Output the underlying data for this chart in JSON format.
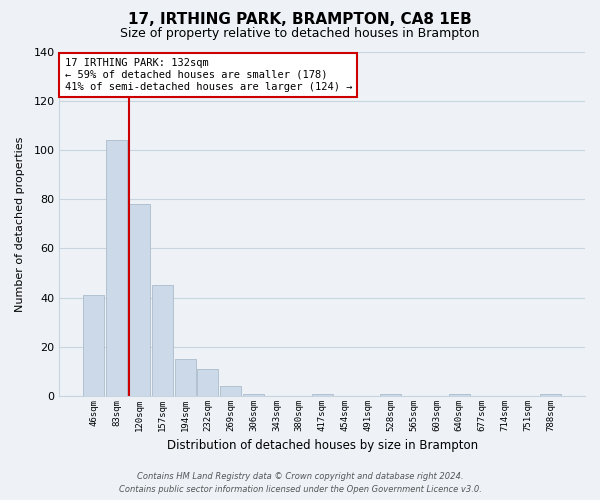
{
  "title": "17, IRTHING PARK, BRAMPTON, CA8 1EB",
  "subtitle": "Size of property relative to detached houses in Brampton",
  "xlabel": "Distribution of detached houses by size in Brampton",
  "ylabel": "Number of detached properties",
  "bar_labels": [
    "46sqm",
    "83sqm",
    "120sqm",
    "157sqm",
    "194sqm",
    "232sqm",
    "269sqm",
    "306sqm",
    "343sqm",
    "380sqm",
    "417sqm",
    "454sqm",
    "491sqm",
    "528sqm",
    "565sqm",
    "603sqm",
    "640sqm",
    "677sqm",
    "714sqm",
    "751sqm",
    "788sqm"
  ],
  "bar_values": [
    41,
    104,
    78,
    45,
    15,
    11,
    4,
    1,
    0,
    0,
    1,
    0,
    0,
    1,
    0,
    0,
    1,
    0,
    0,
    0,
    1
  ],
  "bar_color": "#ccd9e8",
  "bar_edge_color": "#aabccc",
  "ylim": [
    0,
    140
  ],
  "yticks": [
    0,
    20,
    40,
    60,
    80,
    100,
    120,
    140
  ],
  "vline_color": "#cc0000",
  "annotation_line1": "17 IRTHING PARK: 132sqm",
  "annotation_line2": "← 59% of detached houses are smaller (178)",
  "annotation_line3": "41% of semi-detached houses are larger (124) →",
  "annotation_box_color": "#ffffff",
  "annotation_box_edge": "#cc0000",
  "footer_line1": "Contains HM Land Registry data © Crown copyright and database right 2024.",
  "footer_line2": "Contains public sector information licensed under the Open Government Licence v3.0.",
  "bg_color": "#eef2f7",
  "plot_bg_color": "#eef2f7",
  "grid_color": "#c8d4e0",
  "title_fontsize": 11,
  "subtitle_fontsize": 9
}
